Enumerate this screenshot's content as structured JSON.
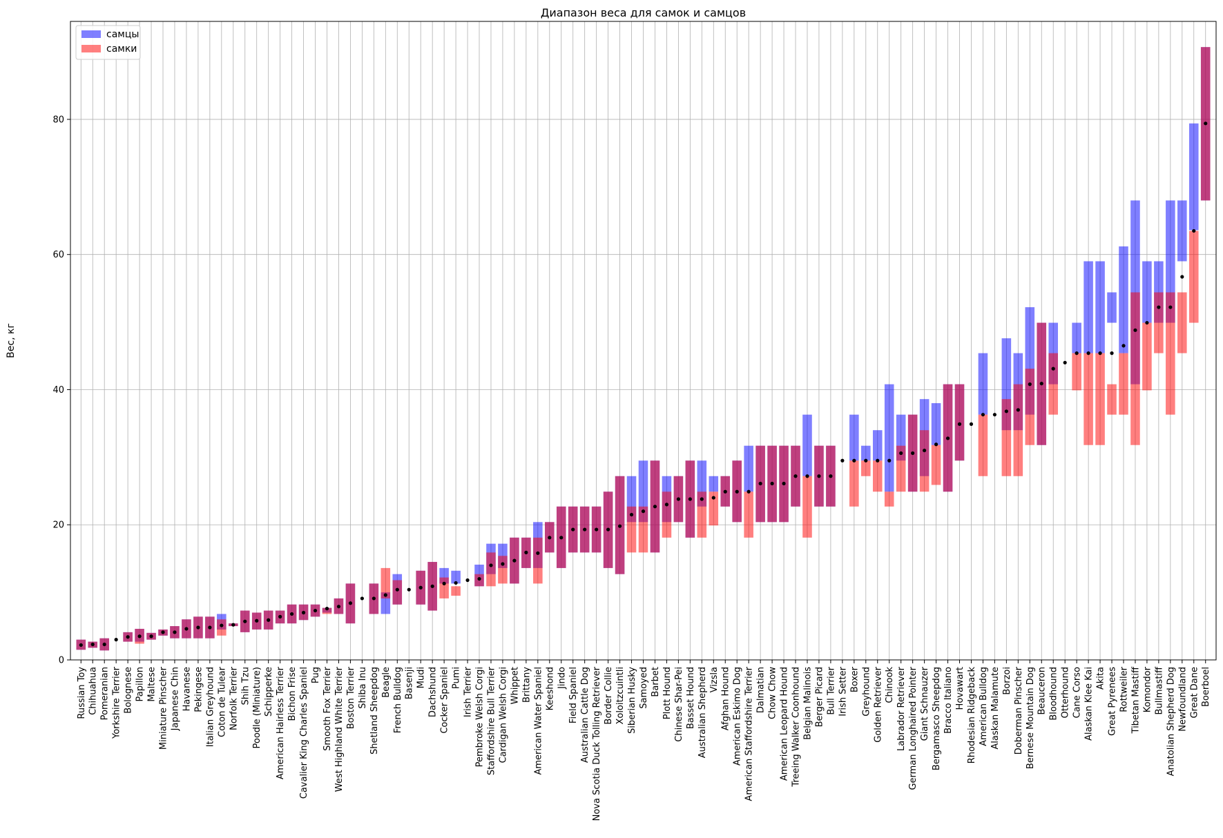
{
  "chart_data": {
    "type": "bar",
    "title": "Диапазон веса для самок и самцов",
    "xlabel": "",
    "ylabel": "Вес, кг",
    "ylim": [
      0,
      94.5
    ],
    "yticks": [
      0,
      20,
      40,
      60,
      80
    ],
    "grid": true,
    "legend_position": "top-left",
    "colors": {
      "male": "#0000ff",
      "female": "#ff0000",
      "median": "#000000"
    },
    "series": [
      {
        "name": "самцы",
        "key": "male"
      },
      {
        "name": "самки",
        "key": "female"
      }
    ],
    "categories": [
      "Russian Toy",
      "Chihuahua",
      "Pomeranian",
      "Yorkshire Terrier",
      "Bolognese",
      "Papillon",
      "Maltese",
      "Miniature Pinscher",
      "Japanese Chin",
      "Havanese",
      "Pekingese",
      "Italian Greyhound",
      "Coton de Tulear",
      "Norfolk Terrier",
      "Shih Tzu",
      "Poodle (Miniature)",
      "Schipperke",
      "American Hairless Terrier",
      "Bichon Frise",
      "Cavalier King Charles Spaniel",
      "Pug",
      "Smooth Fox Terrier",
      "West Highland White Terrier",
      "Boston Terrier",
      "Shiba Inu",
      "Shetland Sheepdog",
      "Beagle",
      "French Bulldog",
      "Basenji",
      "Mudi",
      "Dachshund",
      "Cocker Spaniel",
      "Pumi",
      "Irish Terrier",
      "Pembroke Welsh Corgi",
      "Staffordshire Bull Terrier",
      "Cardigan Welsh Corgi",
      "Whippet",
      "Brittany",
      "American Water Spaniel",
      "Keeshond",
      "Jindo",
      "Field Spaniel",
      "Australian Cattle Dog",
      "Nova Scotia Duck Tolling Retriever",
      "Border Collie",
      "Xoloitzcuintli",
      "Siberian Husky",
      "Samoyed",
      "Barbet",
      "Plott Hound",
      "Chinese Shar-Pei",
      "Basset Hound",
      "Australian Shepherd",
      "Vizsla",
      "Afghan Hound",
      "American Eskimo Dog",
      "American Staffordshire Terrier",
      "Dalmatian",
      "Chow Chow",
      "American Leopard Hound",
      "Treeing Walker Coonhound",
      "Belgian Malinois",
      "Berger Picard",
      "Bull Terrier",
      "Irish Setter",
      "Boxer",
      "Greyhound",
      "Golden Retriever",
      "Chinook",
      "Labrador Retriever",
      "German Longhaired Pointer",
      "Giant Schnauzer",
      "Bergamasco Sheepdog",
      "Bracco Italiano",
      "Hovawart",
      "Rhodesian Ridgeback",
      "American Bulldog",
      "Alaskan Malamute",
      "Borzoi",
      "Doberman Pinscher",
      "Bernese Mountain Dog",
      "Beauceron",
      "Bloodhound",
      "Otterhound",
      "Cane Corso",
      "Alaskan Klee Kai",
      "Akita",
      "Great Pyrenees",
      "Rottweiler",
      "Tibetan Mastiff",
      "Komondor",
      "Bullmastiff",
      "Anatolian Shepherd Dog",
      "Newfoundland",
      "Great Dane",
      "Boerboel"
    ],
    "male": [
      [
        1.5,
        3.0
      ],
      [
        1.8,
        2.7
      ],
      [
        1.4,
        3.2
      ],
      [
        3.0,
        3.0
      ],
      [
        2.7,
        4.1
      ],
      [
        2.7,
        4.6
      ],
      [
        3.0,
        4.0
      ],
      [
        3.6,
        4.5
      ],
      [
        3.2,
        5.0
      ],
      [
        3.2,
        6.0
      ],
      [
        3.2,
        6.4
      ],
      [
        3.2,
        6.4
      ],
      [
        4.5,
        6.8
      ],
      [
        5.0,
        5.4
      ],
      [
        4.1,
        7.3
      ],
      [
        4.5,
        7.0
      ],
      [
        4.5,
        7.3
      ],
      [
        5.4,
        7.3
      ],
      [
        5.4,
        8.2
      ],
      [
        5.9,
        8.2
      ],
      [
        6.4,
        8.2
      ],
      [
        7.0,
        7.7
      ],
      [
        6.8,
        9.1
      ],
      [
        5.4,
        11.3
      ],
      [
        9.1,
        9.1
      ],
      [
        6.8,
        11.3
      ],
      [
        6.8,
        10.0
      ],
      [
        8.2,
        12.7
      ],
      [
        10.4,
        10.4
      ],
      [
        8.2,
        13.2
      ],
      [
        7.3,
        14.5
      ],
      [
        11.3,
        13.6
      ],
      [
        11.3,
        13.2
      ],
      [
        11.8,
        11.8
      ],
      [
        10.9,
        14.1
      ],
      [
        12.7,
        17.2
      ],
      [
        13.6,
        17.2
      ],
      [
        11.3,
        18.1
      ],
      [
        13.6,
        18.1
      ],
      [
        13.6,
        20.4
      ],
      [
        15.9,
        20.4
      ],
      [
        13.6,
        22.7
      ],
      [
        15.9,
        22.7
      ],
      [
        15.9,
        22.7
      ],
      [
        15.9,
        22.7
      ],
      [
        13.6,
        24.9
      ],
      [
        12.7,
        27.2
      ],
      [
        20.4,
        27.2
      ],
      [
        20.4,
        29.5
      ],
      [
        15.9,
        29.5
      ],
      [
        20.4,
        27.2
      ],
      [
        20.4,
        27.2
      ],
      [
        18.1,
        29.5
      ],
      [
        22.7,
        29.5
      ],
      [
        24.9,
        27.2
      ],
      [
        22.7,
        27.2
      ],
      [
        20.4,
        29.5
      ],
      [
        24.9,
        31.7
      ],
      [
        20.4,
        31.7
      ],
      [
        20.4,
        31.7
      ],
      [
        20.4,
        31.7
      ],
      [
        22.7,
        31.7
      ],
      [
        27.2,
        36.3
      ],
      [
        22.7,
        31.7
      ],
      [
        22.7,
        31.7
      ],
      [
        29.5,
        29.5
      ],
      [
        29.5,
        36.3
      ],
      [
        29.5,
        31.7
      ],
      [
        29.5,
        34.0
      ],
      [
        24.9,
        40.8
      ],
      [
        29.5,
        36.3
      ],
      [
        24.9,
        36.3
      ],
      [
        27.2,
        38.6
      ],
      [
        31.8,
        38.0
      ],
      [
        24.9,
        40.8
      ],
      [
        29.5,
        40.8
      ],
      [
        34.9,
        34.9
      ],
      [
        36.3,
        45.4
      ],
      [
        36.3,
        36.3
      ],
      [
        34.0,
        47.6
      ],
      [
        34.0,
        45.4
      ],
      [
        36.3,
        52.2
      ],
      [
        31.8,
        49.9
      ],
      [
        40.8,
        49.9
      ],
      [
        44.0,
        44.0
      ],
      [
        45.4,
        49.9
      ],
      [
        45.4,
        59.0
      ],
      [
        45.4,
        59.0
      ],
      [
        49.9,
        54.4
      ],
      [
        45.4,
        61.2
      ],
      [
        40.8,
        68.0
      ],
      [
        49.9,
        59.0
      ],
      [
        49.9,
        59.0
      ],
      [
        49.9,
        68.0
      ],
      [
        59.0,
        68.0
      ],
      [
        63.6,
        79.4
      ],
      [
        68.0,
        90.7
      ]
    ],
    "female": [
      [
        1.5,
        3.0
      ],
      [
        1.8,
        2.7
      ],
      [
        1.4,
        3.2
      ],
      [
        3.0,
        3.0
      ],
      [
        2.7,
        4.1
      ],
      [
        2.4,
        4.6
      ],
      [
        3.0,
        4.0
      ],
      [
        3.6,
        4.5
      ],
      [
        3.2,
        5.0
      ],
      [
        3.2,
        6.0
      ],
      [
        3.2,
        6.4
      ],
      [
        3.2,
        6.4
      ],
      [
        3.6,
        6.0
      ],
      [
        5.0,
        5.4
      ],
      [
        4.1,
        7.3
      ],
      [
        4.5,
        7.0
      ],
      [
        4.5,
        7.3
      ],
      [
        5.4,
        7.3
      ],
      [
        5.4,
        8.2
      ],
      [
        5.9,
        8.2
      ],
      [
        6.4,
        8.2
      ],
      [
        6.8,
        7.7
      ],
      [
        6.8,
        9.1
      ],
      [
        5.4,
        11.3
      ],
      [
        9.1,
        9.1
      ],
      [
        6.8,
        11.3
      ],
      [
        9.1,
        13.6
      ],
      [
        8.2,
        11.8
      ],
      [
        10.4,
        10.4
      ],
      [
        8.2,
        13.2
      ],
      [
        7.3,
        14.5
      ],
      [
        9.1,
        12.2
      ],
      [
        9.5,
        10.9
      ],
      [
        11.8,
        11.8
      ],
      [
        10.9,
        12.7
      ],
      [
        10.9,
        15.9
      ],
      [
        11.3,
        15.4
      ],
      [
        11.3,
        18.1
      ],
      [
        13.6,
        18.1
      ],
      [
        11.3,
        18.1
      ],
      [
        15.9,
        20.4
      ],
      [
        13.6,
        22.7
      ],
      [
        15.9,
        22.7
      ],
      [
        15.9,
        22.7
      ],
      [
        15.9,
        22.7
      ],
      [
        13.6,
        24.9
      ],
      [
        12.7,
        27.2
      ],
      [
        15.9,
        22.7
      ],
      [
        15.9,
        22.7
      ],
      [
        15.9,
        29.5
      ],
      [
        18.1,
        24.9
      ],
      [
        20.4,
        27.2
      ],
      [
        18.1,
        29.5
      ],
      [
        18.1,
        24.9
      ],
      [
        19.9,
        24.9
      ],
      [
        22.7,
        27.2
      ],
      [
        20.4,
        29.5
      ],
      [
        18.1,
        24.9
      ],
      [
        20.4,
        31.7
      ],
      [
        20.4,
        31.7
      ],
      [
        20.4,
        31.7
      ],
      [
        22.7,
        31.7
      ],
      [
        18.1,
        27.2
      ],
      [
        22.7,
        31.7
      ],
      [
        22.7,
        31.7
      ],
      [
        29.5,
        29.5
      ],
      [
        22.7,
        29.5
      ],
      [
        27.2,
        29.5
      ],
      [
        24.9,
        29.5
      ],
      [
        22.7,
        24.9
      ],
      [
        24.9,
        31.7
      ],
      [
        24.9,
        36.3
      ],
      [
        24.9,
        34.0
      ],
      [
        25.9,
        31.8
      ],
      [
        24.9,
        40.8
      ],
      [
        29.5,
        40.8
      ],
      [
        34.9,
        34.9
      ],
      [
        27.2,
        36.3
      ],
      [
        36.3,
        36.3
      ],
      [
        27.2,
        38.6
      ],
      [
        27.2,
        40.8
      ],
      [
        31.8,
        43.1
      ],
      [
        31.8,
        49.9
      ],
      [
        36.3,
        45.4
      ],
      [
        44.0,
        44.0
      ],
      [
        39.9,
        45.4
      ],
      [
        31.8,
        45.4
      ],
      [
        31.8,
        45.4
      ],
      [
        36.3,
        40.8
      ],
      [
        36.3,
        45.4
      ],
      [
        31.8,
        54.4
      ],
      [
        39.9,
        49.9
      ],
      [
        45.4,
        54.4
      ],
      [
        36.3,
        54.4
      ],
      [
        45.4,
        54.4
      ],
      [
        49.9,
        63.5
      ],
      [
        68.0,
        90.7
      ]
    ],
    "median": [
      2.2,
      2.3,
      2.3,
      3.0,
      3.4,
      3.5,
      3.5,
      4.1,
      4.1,
      4.6,
      4.8,
      4.8,
      5.1,
      5.2,
      5.7,
      5.8,
      5.9,
      6.4,
      6.8,
      7.0,
      7.3,
      7.6,
      7.9,
      8.4,
      9.1,
      9.1,
      9.6,
      10.4,
      10.4,
      10.7,
      10.9,
      11.3,
      11.4,
      11.8,
      12.0,
      14.0,
      14.2,
      14.7,
      15.9,
      15.8,
      18.1,
      18.1,
      19.3,
      19.3,
      19.3,
      19.3,
      19.8,
      21.5,
      22.0,
      22.7,
      23.0,
      23.8,
      23.8,
      23.8,
      24.0,
      24.9,
      24.9,
      24.9,
      26.1,
      26.1,
      26.1,
      27.2,
      27.2,
      27.2,
      27.2,
      29.5,
      29.5,
      29.5,
      29.5,
      29.5,
      30.6,
      30.6,
      31.0,
      31.9,
      32.8,
      34.9,
      34.9,
      36.3,
      36.3,
      36.8,
      37.0,
      40.8,
      40.9,
      43.1,
      44.0,
      45.4,
      45.4,
      45.4,
      45.4,
      46.5,
      48.8,
      49.9,
      52.2,
      52.2,
      56.7,
      63.5,
      79.4
    ]
  }
}
